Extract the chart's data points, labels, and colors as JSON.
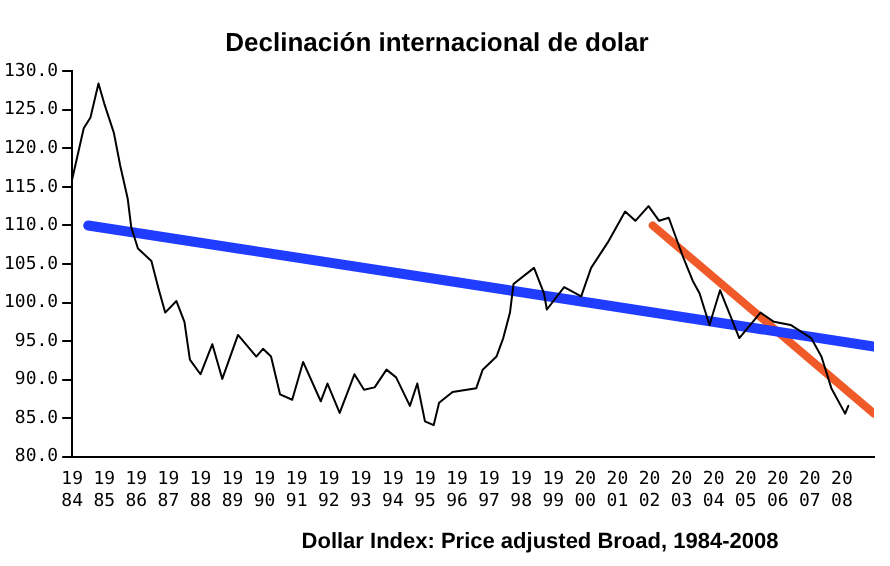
{
  "chart_data": {
    "type": "line",
    "title": "Declinación internacional de dolar",
    "annotations": [
      "Dollar Index: Price adjusted Broad, 1984-2008"
    ],
    "xlim": [
      1984,
      2009
    ],
    "ylim": [
      80,
      130
    ],
    "xticks": [
      1984,
      1985,
      1986,
      1987,
      1988,
      1989,
      1990,
      1991,
      1992,
      1993,
      1994,
      1995,
      1996,
      1997,
      1998,
      1999,
      2000,
      2001,
      2002,
      2003,
      2004,
      2005,
      2006,
      2007,
      2008
    ],
    "yticks": [
      {
        "value": 80,
        "label": "80.0"
      },
      {
        "value": 85,
        "label": "85.0"
      },
      {
        "value": 90,
        "label": "90.0"
      },
      {
        "value": 95,
        "label": "95.0"
      },
      {
        "value": 100,
        "label": "100.0"
      },
      {
        "value": 105,
        "label": "105.0"
      },
      {
        "value": 110,
        "label": "110.0"
      },
      {
        "value": 115,
        "label": "115.0"
      },
      {
        "value": 120,
        "label": "120.0"
      },
      {
        "value": 125,
        "label": "125.0"
      },
      {
        "value": 130,
        "label": "130.0"
      }
    ],
    "legend": false,
    "marker": "none",
    "line_style": "solid",
    "series": [
      {
        "color": "#000000",
        "x": [
          1984.0,
          1984.36,
          1984.57,
          1984.82,
          1985.0,
          1985.3,
          1985.5,
          1985.73,
          1985.84,
          1986.05,
          1986.47,
          1986.68,
          1986.9,
          1987.25,
          1987.5,
          1987.67,
          1988.0,
          1988.37,
          1988.68,
          1989.17,
          1989.74,
          1989.95,
          1990.2,
          1990.48,
          1990.86,
          1991.2,
          1991.75,
          1991.96,
          1992.34,
          1992.8,
          1993.1,
          1993.43,
          1993.8,
          1994.1,
          1994.53,
          1994.76,
          1995.0,
          1995.27,
          1995.44,
          1995.86,
          1996.6,
          1996.8,
          1997.23,
          1997.44,
          1997.65,
          1997.76,
          1998.4,
          1998.71,
          1998.8,
          1999.34,
          1999.87,
          2000.18,
          2000.7,
          2001.24,
          2001.56,
          2001.97,
          2002.3,
          2002.6,
          2003.03,
          2003.35,
          2003.56,
          2003.87,
          2004.2,
          2004.8,
          2005.46,
          2005.88,
          2006.4,
          2007.04,
          2007.36,
          2007.67,
          2008.1,
          2008.2
        ],
        "values": [
          116,
          122.6,
          124,
          128.4,
          125.8,
          122,
          117.7,
          113.5,
          109.8,
          107,
          105.4,
          102,
          98.7,
          100.2,
          97.5,
          92.6,
          90.7,
          94.6,
          90.1,
          95.8,
          93,
          94,
          93,
          88.1,
          87.4,
          92.3,
          87.2,
          89.5,
          85.7,
          90.7,
          88.7,
          89,
          91.3,
          90.3,
          86.6,
          89.5,
          84.6,
          84.1,
          87,
          88.4,
          88.9,
          91.3,
          93,
          95.4,
          98.7,
          102.4,
          104.5,
          101.2,
          99.1,
          102,
          100.8,
          104.5,
          107.8,
          111.8,
          110.6,
          112.5,
          110.6,
          111,
          106.1,
          102.8,
          101.2,
          97.1,
          101.6,
          95.4,
          98.7,
          97.5,
          97.1,
          95.4,
          93,
          88.9,
          85.6,
          86.6
        ]
      },
      {
        "color": "#1f3cff",
        "x": [
          1984.5,
          2009
        ],
        "values": [
          110,
          94.3
        ]
      },
      {
        "color": "#f05a28",
        "x": [
          2002.1,
          2009
        ],
        "values": [
          110,
          85.6
        ]
      }
    ]
  }
}
